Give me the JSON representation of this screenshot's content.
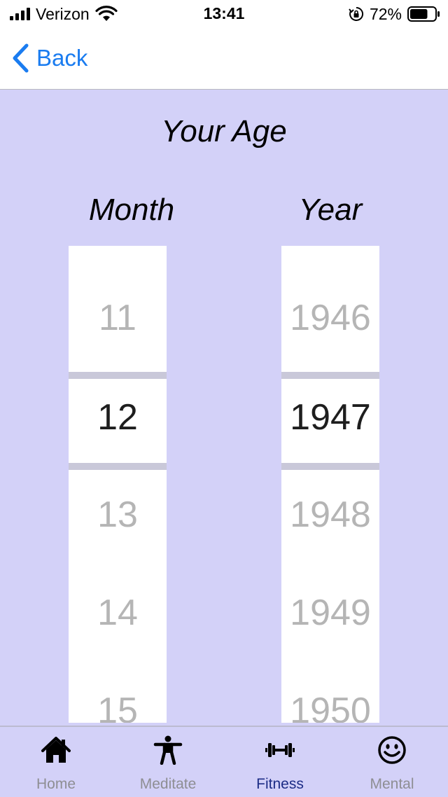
{
  "status_bar": {
    "carrier": "Verizon",
    "time": "13:41",
    "battery_percent": "72%",
    "battery_level": 0.72,
    "signal_bars": 4
  },
  "nav": {
    "back_label": "Back"
  },
  "page": {
    "title": "Your Age"
  },
  "month_picker": {
    "header": "Month",
    "items": [
      "11",
      "12",
      "13",
      "14",
      "15"
    ],
    "selected": "12"
  },
  "year_picker": {
    "header": "Year",
    "items": [
      "1946",
      "1947",
      "1948",
      "1949",
      "1950"
    ],
    "selected": "1947"
  },
  "tab_bar": {
    "tabs": [
      {
        "label": "Home",
        "icon": "home-icon"
      },
      {
        "label": "Meditate",
        "icon": "person-icon"
      },
      {
        "label": "Fitness",
        "icon": "dumbbell-icon"
      },
      {
        "label": "Mental",
        "icon": "smiley-icon"
      }
    ],
    "active": "Fitness"
  },
  "colors": {
    "background": "#d3d1f8",
    "accent": "#1a7cf0",
    "active_tab": "#1c2c86",
    "inactive_tab": "#8e8e93"
  }
}
